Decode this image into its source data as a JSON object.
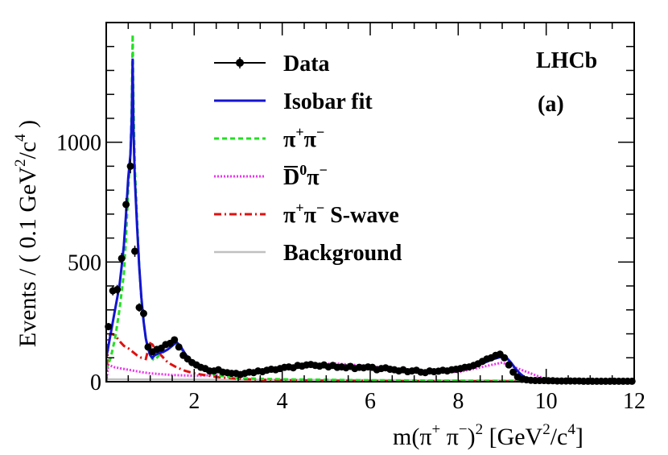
{
  "chart_data": {
    "type": "line",
    "experiment_label": "LHCb",
    "panel_label": "(a)",
    "xlabel_parts": [
      "m(π",
      "+",
      " π",
      "−",
      ")",
      "2",
      " [GeV",
      "2",
      "/c",
      "4",
      "]"
    ],
    "ylabel_parts": [
      "Events / ( 0.1 GeV",
      "2",
      "/c",
      "4",
      " )"
    ],
    "xlim": [
      0,
      12
    ],
    "ylim": [
      0,
      1500
    ],
    "x_ticks": [
      2,
      4,
      6,
      8,
      10,
      12
    ],
    "y_ticks": [
      0,
      500,
      1000
    ],
    "grid": false,
    "legend_position": "top-center",
    "legend": [
      {
        "key": "data",
        "name": "Data",
        "base": "Data",
        "sup": "",
        "tail": "",
        "over": false
      },
      {
        "key": "fit",
        "name": "Isobar fit",
        "base": "Isobar fit",
        "sup": "",
        "tail": "",
        "over": false
      },
      {
        "key": "pipi",
        "name": "π⁺π⁻",
        "base": "π",
        "sup": "+",
        "tail": "π",
        "sup2": "−",
        "over": false
      },
      {
        "key": "dpi",
        "name": "D̄⁰π⁻",
        "base": "D",
        "sup": "0",
        "tail": "π",
        "sup2": "−",
        "over": true
      },
      {
        "key": "swave",
        "name": "π⁺π⁻ S-wave",
        "base": "π",
        "sup": "+",
        "tail": "π",
        "sup2": "−",
        "extra": " S-wave",
        "over": false
      },
      {
        "key": "bkg",
        "name": "Background",
        "base": "Background",
        "sup": "",
        "tail": "",
        "over": false
      }
    ],
    "colors": {
      "data": "#000000",
      "fit": "#1414d2",
      "pipi": "#22e022",
      "dpi": "#ee33ee",
      "swave": "#e01010",
      "bkg": "#c0c0c0"
    },
    "series": [
      {
        "key": "data",
        "name": "Data",
        "x": [
          0.05,
          0.15,
          0.25,
          0.35,
          0.45,
          0.55,
          0.65,
          0.75,
          0.85,
          0.95,
          1.05,
          1.15,
          1.25,
          1.35,
          1.45,
          1.55,
          1.65,
          1.75,
          1.85,
          1.95,
          2.05,
          2.15,
          2.25,
          2.35,
          2.45,
          2.55,
          2.65,
          2.75,
          2.85,
          2.95,
          3.05,
          3.15,
          3.25,
          3.35,
          3.45,
          3.55,
          3.65,
          3.75,
          3.85,
          3.95,
          4.05,
          4.15,
          4.25,
          4.35,
          4.45,
          4.55,
          4.65,
          4.75,
          4.85,
          4.95,
          5.05,
          5.15,
          5.25,
          5.35,
          5.45,
          5.55,
          5.65,
          5.75,
          5.85,
          5.95,
          6.05,
          6.15,
          6.25,
          6.35,
          6.45,
          6.55,
          6.65,
          6.75,
          6.85,
          6.95,
          7.05,
          7.15,
          7.25,
          7.35,
          7.45,
          7.55,
          7.65,
          7.75,
          7.85,
          7.95,
          8.05,
          8.15,
          8.25,
          8.35,
          8.45,
          8.55,
          8.65,
          8.75,
          8.85,
          8.95,
          9.05,
          9.15,
          9.25,
          9.35,
          9.45,
          9.55,
          9.65,
          9.75,
          9.85,
          9.95,
          10.05,
          10.15,
          10.25,
          10.35,
          10.45,
          10.55,
          10.65,
          10.75,
          10.85,
          10.95,
          11.05,
          11.15,
          11.25,
          11.35,
          11.45,
          11.55,
          11.65,
          11.75,
          11.85,
          11.95
        ],
        "y": [
          230,
          380,
          385,
          515,
          740,
          900,
          545,
          310,
          285,
          145,
          125,
          135,
          140,
          155,
          160,
          175,
          145,
          110,
          95,
          80,
          70,
          60,
          55,
          45,
          45,
          50,
          40,
          38,
          35,
          35,
          30,
          35,
          40,
          38,
          45,
          42,
          48,
          52,
          50,
          55,
          60,
          62,
          58,
          68,
          65,
          70,
          72,
          68,
          65,
          70,
          62,
          68,
          60,
          62,
          58,
          64,
          55,
          60,
          58,
          62,
          60,
          50,
          55,
          58,
          52,
          50,
          45,
          50,
          42,
          45,
          48,
          40,
          38,
          45,
          42,
          44,
          48,
          45,
          50,
          52,
          55,
          60,
          62,
          68,
          75,
          85,
          95,
          100,
          110,
          115,
          100,
          70,
          40,
          20,
          10,
          8,
          6,
          5,
          5,
          5,
          4,
          4,
          3,
          3,
          3,
          3,
          3,
          3,
          2,
          2,
          2,
          2,
          2,
          2,
          2,
          2,
          2,
          2,
          2,
          2
        ]
      },
      {
        "key": "fit",
        "name": "Isobar fit",
        "x": [
          0.0,
          0.1,
          0.2,
          0.3,
          0.35,
          0.4,
          0.45,
          0.5,
          0.55,
          0.58,
          0.6,
          0.62,
          0.65,
          0.7,
          0.75,
          0.8,
          0.85,
          0.9,
          0.95,
          1.0,
          1.05,
          1.1,
          1.15,
          1.2,
          1.3,
          1.4,
          1.5,
          1.6,
          1.7,
          1.8,
          1.9,
          2.0,
          2.2,
          2.4,
          2.6,
          2.8,
          3.0,
          3.2,
          3.4,
          3.6,
          3.8,
          4.0,
          4.2,
          4.4,
          4.6,
          4.8,
          5.0,
          5.2,
          5.4,
          5.6,
          5.8,
          6.0,
          6.2,
          6.4,
          6.6,
          6.8,
          7.0,
          7.2,
          7.4,
          7.6,
          7.8,
          8.0,
          8.2,
          8.4,
          8.6,
          8.8,
          9.0,
          9.1,
          9.2,
          9.3,
          9.4,
          9.5,
          9.6,
          9.8,
          10.0,
          10.5,
          11.0,
          11.5,
          12.0
        ],
        "y": [
          100,
          200,
          300,
          400,
          480,
          570,
          700,
          850,
          950,
          1100,
          1350,
          1050,
          850,
          650,
          480,
          350,
          250,
          180,
          140,
          110,
          100,
          110,
          115,
          120,
          125,
          135,
          150,
          165,
          145,
          115,
          90,
          75,
          60,
          50,
          44,
          40,
          38,
          40,
          43,
          48,
          53,
          58,
          60,
          63,
          66,
          68,
          70,
          69,
          66,
          63,
          60,
          57,
          55,
          52,
          50,
          47,
          45,
          44,
          45,
          47,
          50,
          55,
          62,
          70,
          80,
          95,
          105,
          100,
          80,
          55,
          35,
          20,
          12,
          7,
          5,
          4,
          3,
          2,
          2
        ]
      },
      {
        "key": "pipi",
        "name": "π⁺π⁻",
        "x": [
          0.0,
          0.1,
          0.2,
          0.3,
          0.4,
          0.45,
          0.5,
          0.55,
          0.58,
          0.6,
          0.62,
          0.65,
          0.7,
          0.75,
          0.8,
          0.85,
          0.9,
          0.95,
          1.0,
          1.05,
          1.1,
          1.2,
          1.3,
          1.4,
          1.5,
          1.6,
          1.7,
          1.8,
          1.9,
          2.0,
          2.2,
          2.4,
          2.6,
          2.8,
          3.0,
          3.5,
          4.0,
          4.5,
          5.0,
          5.5,
          6.0,
          7.0,
          8.0,
          9.0,
          10.0,
          11.0,
          12.0
        ],
        "y": [
          50,
          100,
          180,
          300,
          450,
          600,
          800,
          950,
          1150,
          1450,
          1150,
          900,
          680,
          480,
          340,
          250,
          180,
          140,
          110,
          95,
          90,
          110,
          125,
          135,
          150,
          160,
          140,
          110,
          85,
          70,
          50,
          35,
          25,
          20,
          15,
          12,
          10,
          9,
          8,
          7,
          6,
          5,
          4,
          3,
          2,
          1,
          1
        ]
      },
      {
        "key": "dpi",
        "name": "D̄⁰π⁻",
        "x": [
          0.0,
          0.05,
          0.2,
          0.5,
          0.8,
          1.0,
          1.5,
          2.0,
          2.5,
          3.0,
          3.5,
          4.0,
          4.5,
          5.0,
          5.2,
          5.5,
          6.0,
          6.5,
          7.0,
          7.5,
          8.0,
          8.5,
          9.0,
          9.5,
          10.0,
          10.5,
          11.0,
          12.0
        ],
        "y": [
          0,
          70,
          60,
          50,
          40,
          35,
          28,
          25,
          28,
          35,
          48,
          60,
          70,
          75,
          76,
          72,
          65,
          55,
          48,
          43,
          40,
          60,
          80,
          45,
          10,
          4,
          2,
          1
        ]
      },
      {
        "key": "swave",
        "name": "π⁺π⁻ S-wave",
        "x": [
          0.0,
          0.05,
          0.1,
          0.2,
          0.3,
          0.4,
          0.5,
          0.6,
          0.7,
          0.8,
          0.9,
          0.95,
          0.98,
          1.0,
          1.05,
          1.1,
          1.2,
          1.3,
          1.4,
          1.6,
          1.8,
          2.0,
          2.5,
          3.0,
          3.5,
          4.0,
          5.0,
          6.0,
          7.0,
          8.0,
          9.0,
          10.0,
          11.0,
          12.0
        ],
        "y": [
          0,
          180,
          200,
          195,
          170,
          150,
          140,
          125,
          110,
          100,
          95,
          130,
          150,
          160,
          155,
          140,
          120,
          100,
          80,
          60,
          45,
          35,
          20,
          12,
          8,
          6,
          4,
          3,
          2,
          2,
          1,
          1,
          0,
          0
        ]
      },
      {
        "key": "bkg",
        "name": "Background",
        "x": [
          0.0,
          2.0,
          4.0,
          6.0,
          8.0,
          10.0,
          12.0
        ],
        "y": [
          10,
          9,
          8,
          7,
          6,
          5,
          4
        ]
      }
    ]
  }
}
